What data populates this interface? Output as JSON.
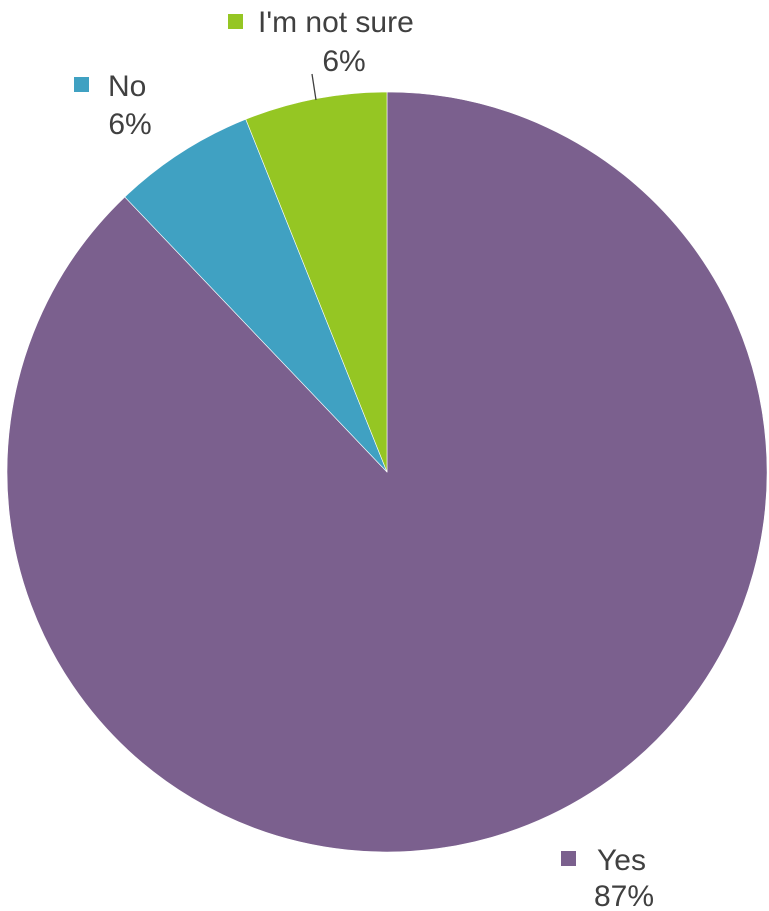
{
  "chart_data": {
    "type": "pie",
    "slices": [
      {
        "label": "Yes",
        "value": 87,
        "value_text": "87%",
        "color": "#7b608e"
      },
      {
        "label": "No",
        "value": 6,
        "value_text": "6%",
        "color": "#40a1c2"
      },
      {
        "label": "I'm not sure",
        "value": 6,
        "value_text": "6%",
        "color": "#95c623"
      }
    ],
    "start_angle_note": "slices start at 12 o'clock and run clockwise: Yes, No, I'm not sure",
    "title": "",
    "legend": "labels beside slices"
  }
}
